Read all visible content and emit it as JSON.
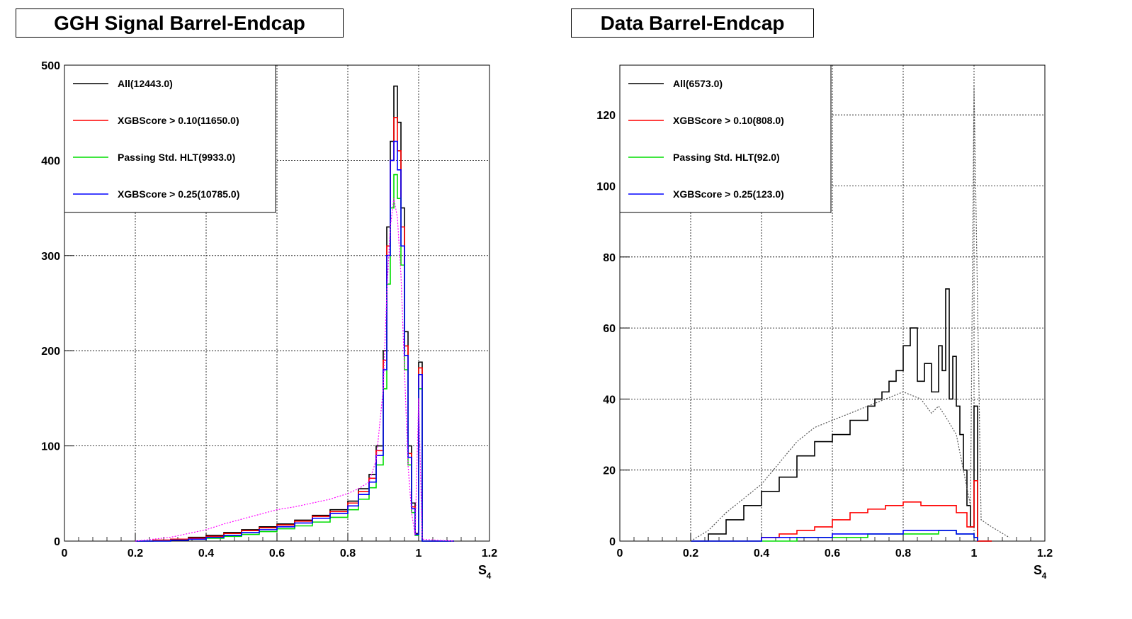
{
  "colors": {
    "all": "#000000",
    "xgb010": "#ff0000",
    "hlt": "#00dd00",
    "xgb025": "#0000ff",
    "grid": "#000000",
    "background": "#ffffff"
  },
  "chart_data": [
    {
      "type": "line",
      "title": "GGH Signal Barrel-Endcap",
      "xlabel": "S",
      "xlabel_sub": "4",
      "ylabel": "",
      "xlim": [
        0,
        1.2
      ],
      "ylim": [
        0,
        500
      ],
      "xticks": [
        "0",
        "0.2",
        "0.4",
        "0.6",
        "0.8",
        "1",
        "1.2"
      ],
      "yticks": [
        "0",
        "100",
        "200",
        "300",
        "400",
        "500"
      ],
      "grid": true,
      "legend_position": "top-left",
      "legend": [
        {
          "label": "All(12443.0)",
          "color": "#000000"
        },
        {
          "label": "XGBScore > 0.10(11650.0)",
          "color": "#ff0000"
        },
        {
          "label": "Passing Std. HLT(9933.0)",
          "color": "#00dd00"
        },
        {
          "label": "XGBScore > 0.25(10785.0)",
          "color": "#0000ff"
        }
      ],
      "series": [
        {
          "name": "All(12443.0)",
          "color": "#000000",
          "style": "step",
          "x": [
            0.2,
            0.25,
            0.3,
            0.35,
            0.4,
            0.45,
            0.5,
            0.55,
            0.6,
            0.65,
            0.7,
            0.75,
            0.8,
            0.83,
            0.86,
            0.88,
            0.9,
            0.91,
            0.92,
            0.93,
            0.94,
            0.95,
            0.96,
            0.97,
            0.98,
            0.99,
            1.0,
            1.01,
            1.05,
            1.1
          ],
          "y": [
            0,
            1,
            2,
            4,
            6,
            9,
            12,
            15,
            18,
            22,
            27,
            33,
            42,
            55,
            70,
            100,
            200,
            330,
            420,
            478,
            440,
            350,
            220,
            100,
            40,
            8,
            188,
            0,
            0,
            0
          ]
        },
        {
          "name": "XGBScore > 0.10(11650.0)",
          "color": "#ff0000",
          "style": "step",
          "x": [
            0.2,
            0.25,
            0.3,
            0.35,
            0.4,
            0.45,
            0.5,
            0.55,
            0.6,
            0.65,
            0.7,
            0.75,
            0.8,
            0.83,
            0.86,
            0.88,
            0.9,
            0.91,
            0.92,
            0.93,
            0.94,
            0.95,
            0.96,
            0.97,
            0.98,
            0.99,
            1.0,
            1.01,
            1.05,
            1.1
          ],
          "y": [
            0,
            1,
            2,
            3,
            5,
            8,
            11,
            14,
            17,
            21,
            26,
            31,
            40,
            52,
            66,
            95,
            190,
            310,
            400,
            445,
            410,
            330,
            205,
            92,
            36,
            7,
            182,
            0,
            0,
            0
          ]
        },
        {
          "name": "Passing Std. HLT(9933.0)",
          "color": "#00dd00",
          "style": "step",
          "x": [
            0.2,
            0.25,
            0.3,
            0.35,
            0.4,
            0.45,
            0.5,
            0.55,
            0.6,
            0.65,
            0.7,
            0.75,
            0.8,
            0.83,
            0.86,
            0.88,
            0.9,
            0.91,
            0.92,
            0.93,
            0.94,
            0.95,
            0.96,
            0.97,
            0.98,
            0.99,
            1.0,
            1.01,
            1.05,
            1.1
          ],
          "y": [
            0,
            0,
            1,
            2,
            3,
            5,
            7,
            10,
            13,
            16,
            20,
            25,
            33,
            44,
            56,
            80,
            160,
            270,
            350,
            385,
            360,
            290,
            180,
            80,
            30,
            6,
            160,
            0,
            0,
            0
          ]
        },
        {
          "name": "XGBScore > 0.25(10785.0)",
          "color": "#0000ff",
          "style": "step",
          "x": [
            0.2,
            0.25,
            0.3,
            0.35,
            0.4,
            0.45,
            0.5,
            0.55,
            0.6,
            0.65,
            0.7,
            0.75,
            0.8,
            0.83,
            0.86,
            0.88,
            0.9,
            0.91,
            0.92,
            0.93,
            0.94,
            0.95,
            0.96,
            0.97,
            0.98,
            0.99,
            1.0,
            1.01,
            1.05,
            1.1
          ],
          "y": [
            0,
            0,
            1,
            2,
            4,
            6,
            9,
            12,
            15,
            19,
            24,
            29,
            37,
            49,
            62,
            90,
            180,
            300,
            400,
            420,
            390,
            310,
            195,
            88,
            34,
            7,
            175,
            0,
            0,
            0
          ]
        },
        {
          "name": "",
          "color": "#ff00ff",
          "style": "dotted",
          "x": [
            0.2,
            0.25,
            0.3,
            0.35,
            0.4,
            0.45,
            0.5,
            0.55,
            0.6,
            0.65,
            0.7,
            0.75,
            0.8,
            0.83,
            0.86,
            0.88,
            0.9,
            0.91,
            0.92,
            0.93,
            0.94,
            0.95,
            0.96,
            0.97,
            0.98,
            0.99,
            1.0,
            1.01,
            1.05,
            1.1
          ],
          "y": [
            0,
            2,
            4,
            8,
            12,
            18,
            23,
            28,
            33,
            36,
            40,
            44,
            50,
            55,
            62,
            85,
            160,
            260,
            330,
            360,
            340,
            280,
            180,
            80,
            30,
            6,
            150,
            2,
            1,
            0
          ]
        }
      ]
    },
    {
      "type": "line",
      "title": "Data Barrel-Endcap",
      "xlabel": "S",
      "xlabel_sub": "4",
      "ylabel": "",
      "xlim": [
        0,
        1.2
      ],
      "ylim": [
        0,
        134
      ],
      "xticks": [
        "0",
        "0.2",
        "0.4",
        "0.6",
        "0.8",
        "1",
        "1.2"
      ],
      "yticks": [
        "0",
        "20",
        "40",
        "60",
        "80",
        "100",
        "120"
      ],
      "yticks_values": [
        0,
        20,
        40,
        60,
        80,
        100,
        120
      ],
      "grid": true,
      "legend_position": "top-left",
      "legend": [
        {
          "label": "All(6573.0)",
          "color": "#000000"
        },
        {
          "label": "XGBScore > 0.10(808.0)",
          "color": "#ff0000"
        },
        {
          "label": "Passing Std. HLT(92.0)",
          "color": "#00dd00"
        },
        {
          "label": "XGBScore > 0.25(123.0)",
          "color": "#0000ff"
        }
      ],
      "series": [
        {
          "name": "All(6573.0)",
          "color": "#000000",
          "style": "step",
          "x": [
            0.2,
            0.25,
            0.3,
            0.35,
            0.4,
            0.45,
            0.5,
            0.55,
            0.6,
            0.65,
            0.7,
            0.72,
            0.74,
            0.76,
            0.78,
            0.8,
            0.82,
            0.84,
            0.86,
            0.88,
            0.9,
            0.91,
            0.92,
            0.93,
            0.94,
            0.95,
            0.96,
            0.97,
            0.98,
            0.99,
            1.0,
            1.01,
            1.05
          ],
          "y": [
            0,
            2,
            6,
            10,
            14,
            18,
            24,
            28,
            30,
            34,
            38,
            40,
            42,
            45,
            48,
            55,
            60,
            45,
            50,
            42,
            55,
            48,
            71,
            40,
            52,
            38,
            30,
            20,
            10,
            4,
            38,
            0,
            0
          ]
        },
        {
          "name": "XGBScore > 0.10(808.0)",
          "color": "#ff0000",
          "style": "step",
          "x": [
            0.2,
            0.3,
            0.4,
            0.45,
            0.5,
            0.55,
            0.6,
            0.65,
            0.7,
            0.75,
            0.8,
            0.85,
            0.9,
            0.95,
            0.98,
            1.0,
            1.01,
            1.05
          ],
          "y": [
            0,
            0,
            1,
            2,
            3,
            4,
            6,
            8,
            9,
            10,
            11,
            10,
            10,
            8,
            4,
            17,
            0,
            0
          ]
        },
        {
          "name": "Passing Std. HLT(92.0)",
          "color": "#00dd00",
          "style": "step",
          "x": [
            0.2,
            0.4,
            0.5,
            0.6,
            0.7,
            0.8,
            0.9,
            0.95,
            1.0,
            1.01
          ],
          "y": [
            0,
            0,
            1,
            1,
            2,
            2,
            3,
            2,
            1,
            0
          ]
        },
        {
          "name": "XGBScore > 0.25(123.0)",
          "color": "#0000ff",
          "style": "step",
          "x": [
            0.2,
            0.4,
            0.5,
            0.6,
            0.7,
            0.8,
            0.9,
            0.95,
            1.0,
            1.01
          ],
          "y": [
            0,
            1,
            1,
            2,
            2,
            3,
            3,
            2,
            1,
            0
          ]
        },
        {
          "name": "",
          "color": "#555555",
          "style": "dotted",
          "x": [
            0.2,
            0.25,
            0.3,
            0.35,
            0.4,
            0.45,
            0.5,
            0.55,
            0.6,
            0.65,
            0.7,
            0.75,
            0.8,
            0.85,
            0.88,
            0.9,
            0.92,
            0.95,
            0.97,
            0.99,
            1.0,
            1.02,
            1.05,
            1.1
          ],
          "y": [
            0,
            3,
            8,
            12,
            16,
            22,
            28,
            32,
            34,
            36,
            38,
            40,
            42,
            40,
            36,
            38,
            35,
            30,
            20,
            10,
            128,
            6,
            4,
            1
          ]
        }
      ]
    }
  ]
}
